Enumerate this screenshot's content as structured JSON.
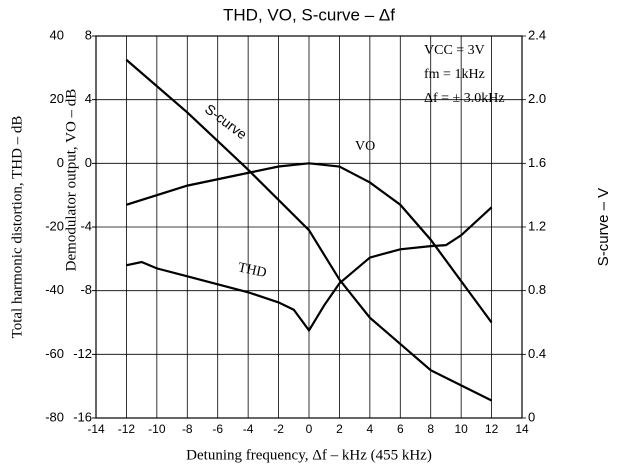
{
  "chart_data": {
    "type": "line",
    "title": "THD, VO, S-curve – Δf",
    "xlabel": "Detuning frequency, Δf – kHz (455 kHz)",
    "ylabel": "Total harmonic distortion, THD – dB",
    "y3label": "Demodulator output, VO – dB",
    "y2label": "S-curve – V",
    "xlim": [
      -14,
      14
    ],
    "xticks": [
      -14,
      -12,
      -10,
      -8,
      -6,
      -4,
      -2,
      0,
      2,
      4,
      6,
      8,
      10,
      12,
      14
    ],
    "ylim": [
      -80,
      40
    ],
    "yticks": [
      40,
      20,
      0,
      -20,
      -40,
      -60,
      -80
    ],
    "y3lim": [
      -16,
      8
    ],
    "y3ticks": [
      8,
      4,
      0,
      -4,
      -8,
      -12,
      -16
    ],
    "y2lim": [
      0,
      2.4
    ],
    "y2ticks": [
      0,
      0.4,
      0.8,
      1.2,
      1.6,
      {
        "value": 2,
        "label": "2.0"
      },
      2.4
    ],
    "grid": true,
    "annotations": [
      "S-curve",
      "VO",
      "THD",
      "VCC = 3V",
      "fm = 1kHz",
      "Δf = ± 3.0kHz"
    ],
    "series": [
      {
        "name": "THD",
        "color": "#000000",
        "axis": "y",
        "x": [
          -12,
          -11,
          -10,
          -8,
          -6,
          -4,
          -2,
          -1,
          0,
          1,
          2,
          4,
          6,
          8,
          9,
          10,
          12
        ],
        "values": [
          -32,
          -31,
          -33,
          -35.5,
          -38,
          -40.5,
          -43.7,
          -46,
          -52.5,
          -44.6,
          -37.7,
          -29.6,
          -27,
          -26,
          -25.7,
          -22.6,
          -13.8
        ]
      },
      {
        "name": "VO",
        "color": "#000000",
        "axis": "y3",
        "x": [
          -12,
          -8,
          -4,
          -2,
          0,
          2,
          4,
          6,
          8,
          10,
          12
        ],
        "values": [
          -2.6,
          -1.4,
          -0.6,
          -0.2,
          0,
          -0.2,
          -1.2,
          -2.6,
          -4.8,
          -7.4,
          -10
        ]
      },
      {
        "name": "S-curve",
        "color": "#000000",
        "axis": "y2",
        "x": [
          -12,
          -8,
          -4,
          0,
          2,
          4,
          8,
          12
        ],
        "values": [
          2.25,
          1.92,
          1.56,
          1.18,
          0.87,
          0.63,
          0.3,
          0.11
        ]
      }
    ]
  }
}
